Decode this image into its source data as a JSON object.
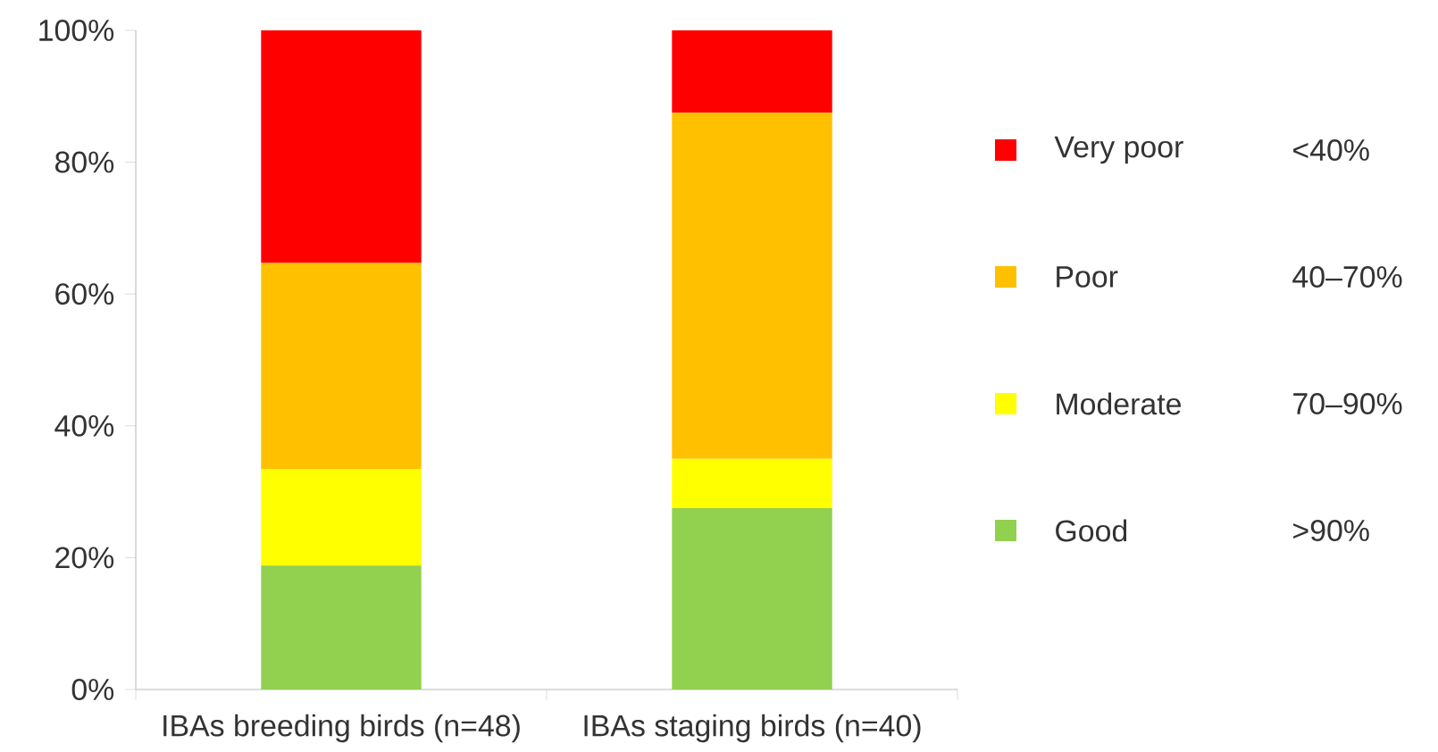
{
  "chart_data": {
    "type": "bar",
    "stacked": true,
    "categories": [
      "IBAs breeding birds (n=48)",
      "IBAs staging birds (n=40)"
    ],
    "series": [
      {
        "name": "Good",
        "color": "#92d050",
        "values": [
          18.8,
          27.5
        ]
      },
      {
        "name": "Moderate",
        "color": "#ffff00",
        "values": [
          14.6,
          7.5
        ]
      },
      {
        "name": "Poor",
        "color": "#ffc000",
        "values": [
          31.3,
          52.5
        ]
      },
      {
        "name": "Very poor",
        "color": "#ff0000",
        "values": [
          35.3,
          12.5
        ]
      }
    ],
    "ylim": [
      0,
      100
    ],
    "yticks": [
      {
        "value": 0,
        "label": "0%"
      },
      {
        "value": 20,
        "label": "20%"
      },
      {
        "value": 40,
        "label": "40%"
      },
      {
        "value": 60,
        "label": "60%"
      },
      {
        "value": 80,
        "label": "80%"
      },
      {
        "value": 100,
        "label": "100%"
      }
    ],
    "annotations": [
      ">90%",
      "70–90%",
      "40–70%",
      "<40%"
    ],
    "legend": "right",
    "grid": false
  }
}
